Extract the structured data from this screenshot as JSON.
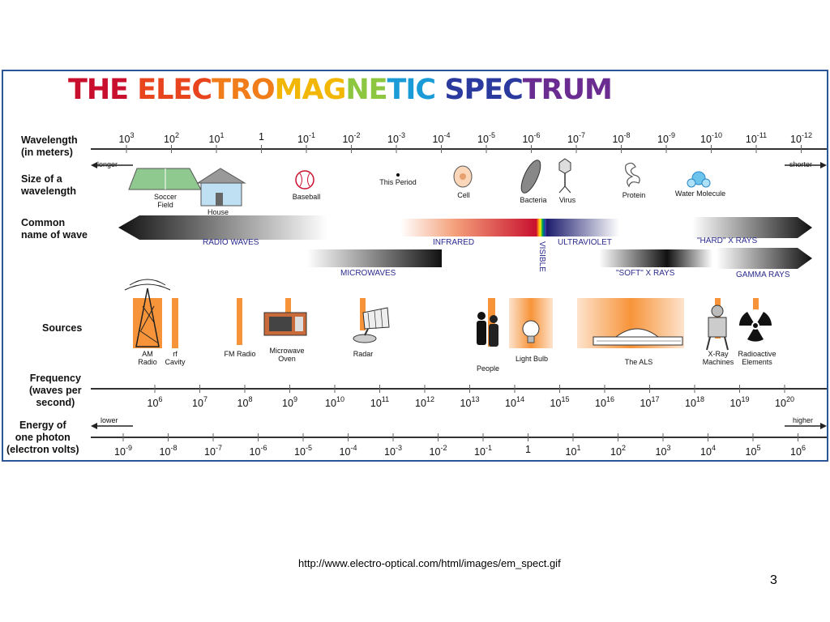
{
  "diagram": {
    "title_parts": [
      {
        "text": "THE ",
        "color": "#c8102e"
      },
      {
        "text": "ELEC",
        "color": "#e8451f"
      },
      {
        "text": "TRO",
        "color": "#f07d1a"
      },
      {
        "text": "MAG",
        "color": "#f2b705"
      },
      {
        "text": "NE",
        "color": "#8dc63f"
      },
      {
        "text": "TIC ",
        "color": "#1a9bd7"
      },
      {
        "text": "SPEC",
        "color": "#2b3a9f"
      },
      {
        "text": "TRUM",
        "color": "#6a2c91"
      }
    ],
    "row_labels": {
      "wavelength": "Wavelength\n(in meters)",
      "size": "Size of a\nwavelength",
      "common_name": "Common\nname of wave",
      "sources": "Sources",
      "frequency": "Frequency\n(waves per\nsecond)",
      "energy": "Energy of\none photon\n(electron volts)"
    },
    "wavelength_ticks": [
      {
        "base": "10",
        "exp": "3"
      },
      {
        "base": "10",
        "exp": "2"
      },
      {
        "base": "10",
        "exp": "1"
      },
      {
        "base": "1",
        "exp": ""
      },
      {
        "base": "10",
        "exp": "-1"
      },
      {
        "base": "10",
        "exp": "-2"
      },
      {
        "base": "10",
        "exp": "-3"
      },
      {
        "base": "10",
        "exp": "-4"
      },
      {
        "base": "10",
        "exp": "-5"
      },
      {
        "base": "10",
        "exp": "-6"
      },
      {
        "base": "10",
        "exp": "-7"
      },
      {
        "base": "10",
        "exp": "-8"
      },
      {
        "base": "10",
        "exp": "-9"
      },
      {
        "base": "10",
        "exp": "-10"
      },
      {
        "base": "10",
        "exp": "-11"
      },
      {
        "base": "10",
        "exp": "-12"
      }
    ],
    "wavelength_ends": {
      "left": "longer",
      "right": "shorter"
    },
    "size_objects": [
      "Soccer\nField",
      "House",
      "Baseball",
      "This Period",
      "Cell",
      "Bacteria",
      "Virus",
      "Protein",
      "Water Molecule"
    ],
    "wave_names": {
      "radio": "RADIO WAVES",
      "microwaves": "MICROWAVES",
      "infrared": "INFRARED",
      "visible": "VISIBLE",
      "ultraviolet": "ULTRAVIOLET",
      "soft_xrays": "\"SOFT\" X RAYS",
      "hard_xrays": "\"HARD\" X RAYS",
      "gamma": "GAMMA RAYS"
    },
    "sources": [
      "AM\nRadio",
      "rf\nCavity",
      "FM Radio",
      "Microwave\nOven",
      "Radar",
      "People",
      "Light Bulb",
      "The ALS",
      "X-Ray\nMachines",
      "Radioactive\nElements"
    ],
    "frequency_ticks": [
      {
        "base": "10",
        "exp": "6"
      },
      {
        "base": "10",
        "exp": "7"
      },
      {
        "base": "10",
        "exp": "8"
      },
      {
        "base": "10",
        "exp": "9"
      },
      {
        "base": "10",
        "exp": "10"
      },
      {
        "base": "10",
        "exp": "11"
      },
      {
        "base": "10",
        "exp": "12"
      },
      {
        "base": "10",
        "exp": "13"
      },
      {
        "base": "10",
        "exp": "14"
      },
      {
        "base": "10",
        "exp": "15"
      },
      {
        "base": "10",
        "exp": "16"
      },
      {
        "base": "10",
        "exp": "17"
      },
      {
        "base": "10",
        "exp": "18"
      },
      {
        "base": "10",
        "exp": "19"
      },
      {
        "base": "10",
        "exp": "20"
      }
    ],
    "energy_ticks": [
      {
        "base": "10",
        "exp": "-9"
      },
      {
        "base": "10",
        "exp": "-8"
      },
      {
        "base": "10",
        "exp": "-7"
      },
      {
        "base": "10",
        "exp": "-6"
      },
      {
        "base": "10",
        "exp": "-5"
      },
      {
        "base": "10",
        "exp": "-4"
      },
      {
        "base": "10",
        "exp": "-3"
      },
      {
        "base": "10",
        "exp": "-2"
      },
      {
        "base": "10",
        "exp": "-1"
      },
      {
        "base": "1",
        "exp": ""
      },
      {
        "base": "10",
        "exp": "1"
      },
      {
        "base": "10",
        "exp": "2"
      },
      {
        "base": "10",
        "exp": "3"
      },
      {
        "base": "10",
        "exp": "4"
      },
      {
        "base": "10",
        "exp": "5"
      },
      {
        "base": "10",
        "exp": "6"
      }
    ],
    "energy_ends": {
      "left": "lower",
      "right": "higher"
    },
    "colors": {
      "border": "#2b5797",
      "source_bar": "#f7943a",
      "wave_text": "#2b2b8f"
    }
  },
  "footer": {
    "url": "http://www.electro-optical.com/html/images/em_spect.gif",
    "page_number": "3"
  }
}
